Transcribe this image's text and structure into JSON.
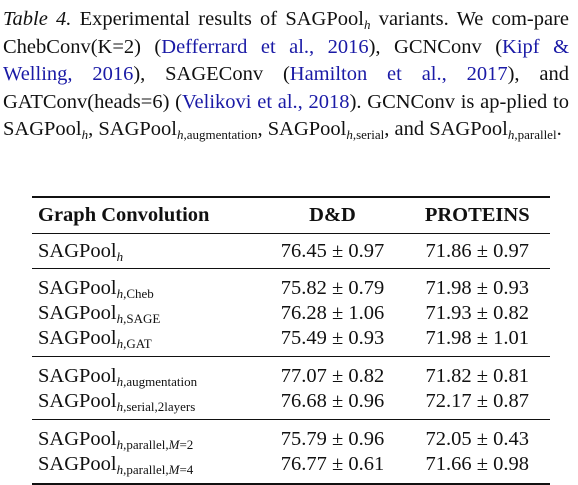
{
  "caption": {
    "label": "Table 4.",
    "s1": "Experimental results of SAGPool",
    "h": "h",
    "s2": " variants. We com-pare ChebConv(K=2) (",
    "c1": "Defferrard et al., 2016",
    "s3": "), GCNConv (",
    "c2": "Kipf & Welling, 2016",
    "s4": "), SAGEConv (",
    "c3": "Hamilton et al., 2017",
    "s5": "), and GATConv(heads=6) (",
    "c4": "Velikovi et al., 2018",
    "s6": "). GCNConv is ap-plied to SAGPool",
    "s7": ", SAGPool",
    "sub_aug": ",augmentation",
    "s8": ", SAGPool",
    "sub_serial": ",serial",
    "s9": ", and SAGPool",
    "sub_parallel": ",parallel",
    "s10": "."
  },
  "table": {
    "headers": [
      "Graph Convolution",
      "D&D",
      "PROTEINS"
    ],
    "base": "SAGPool",
    "h": "h",
    "rows": [
      {
        "sub": "",
        "m": "",
        "mval": "",
        "dd": "76.45 ± 0.97",
        "proteins": "71.86 ± 0.97"
      },
      {
        "sub": ",Cheb",
        "m": "",
        "mval": "",
        "dd": "75.82 ± 0.79",
        "proteins": "71.98 ± 0.93"
      },
      {
        "sub": ",SAGE",
        "m": "",
        "mval": "",
        "dd": "76.28 ± 1.06",
        "proteins": "71.93 ± 0.82"
      },
      {
        "sub": ",GAT",
        "m": "",
        "mval": "",
        "dd": "75.49 ± 0.93",
        "proteins": "71.98 ± 1.01"
      },
      {
        "sub": ",augmentation",
        "m": "",
        "mval": "",
        "dd": "77.07 ± 0.82",
        "proteins": "71.82 ± 0.81"
      },
      {
        "sub": ",serial,2layers",
        "m": "",
        "mval": "",
        "dd": "76.68 ± 0.96",
        "proteins": "72.17 ± 0.87"
      },
      {
        "sub": ",parallel,",
        "m": "M",
        "mval": "=2",
        "dd": "75.79 ± 0.96",
        "proteins": "72.05 ± 0.43"
      },
      {
        "sub": ",parallel,",
        "m": "M",
        "mval": "=4",
        "dd": "76.77 ± 0.61",
        "proteins": "71.66 ± 0.98"
      }
    ]
  }
}
